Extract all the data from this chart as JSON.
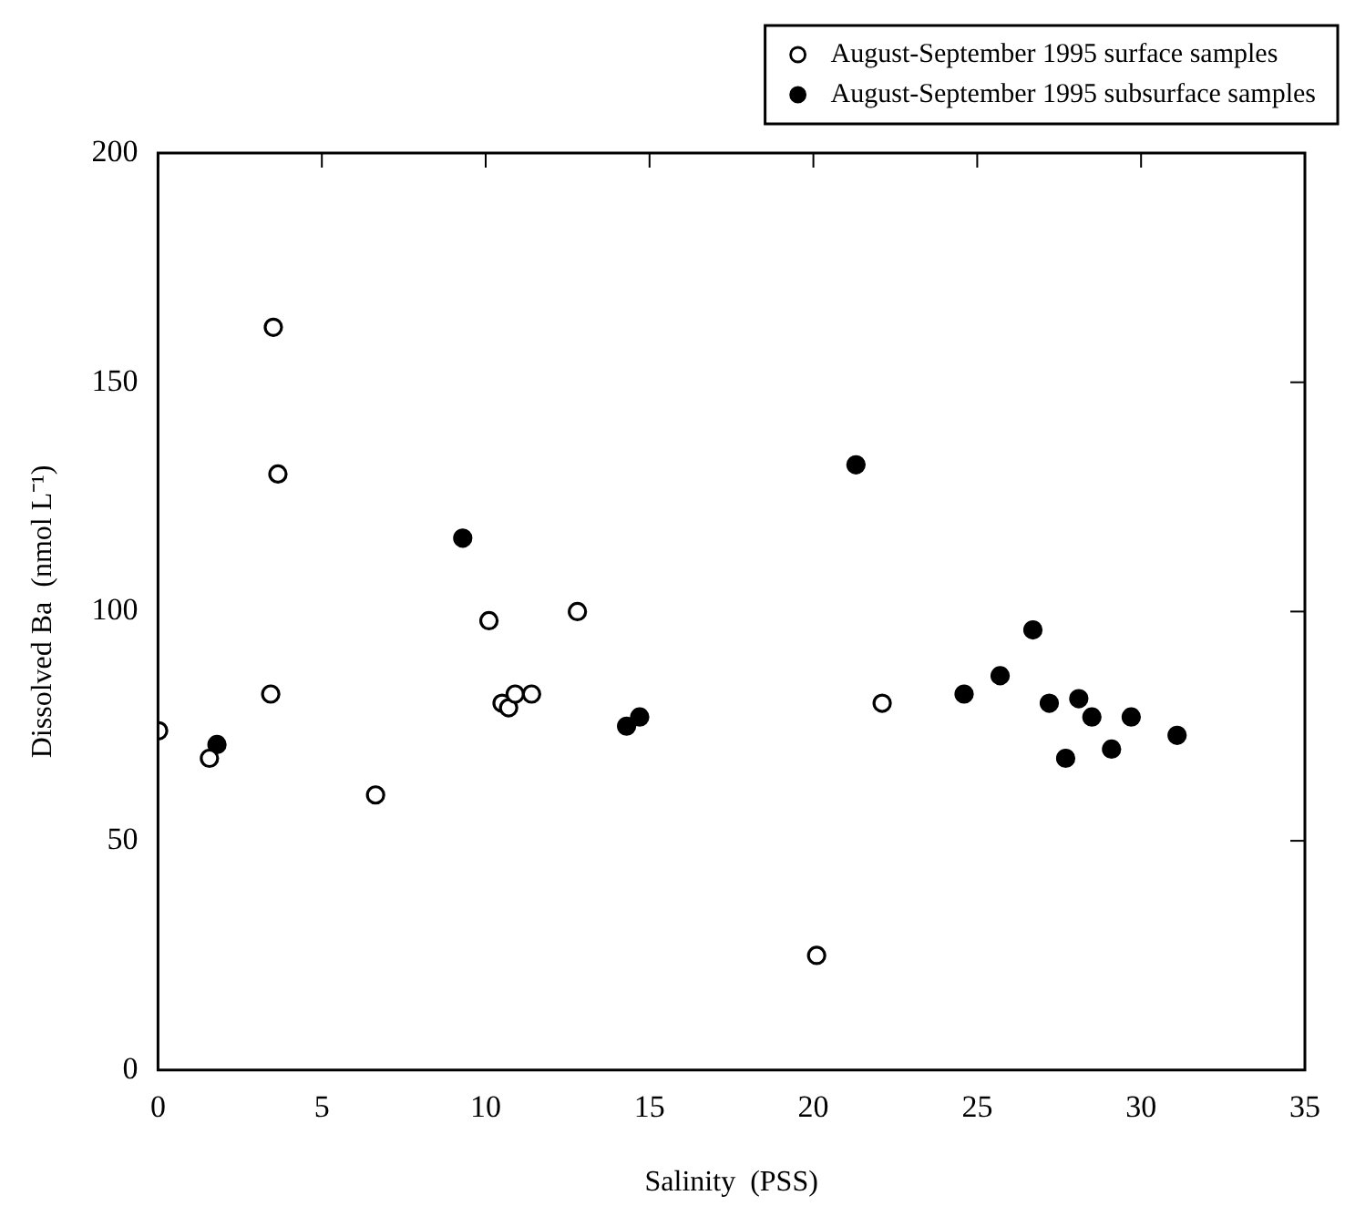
{
  "chart_data": {
    "type": "scatter",
    "xlabel": "Salinity  (PSS)",
    "ylabel": "Dissolved Ba  (nmol L⁻¹)",
    "xlim": [
      0,
      35
    ],
    "xticks": [
      0,
      5,
      10,
      15,
      20,
      25,
      30,
      35
    ],
    "ylim": [
      0,
      200
    ],
    "yticks": [
      0,
      50,
      100,
      150,
      200
    ],
    "grid": false,
    "legend": "top right",
    "marker": "circle",
    "series": [
      {
        "name": "August-September 1995 surface samples",
        "color": "#ffffff",
        "x": [
          0.02,
          1.57,
          3.44,
          3.52,
          3.66,
          6.64,
          10.1,
          10.5,
          10.7,
          10.9,
          11.4,
          12.8,
          20.1,
          22.1
        ],
        "values": [
          74,
          68,
          82,
          162,
          130,
          60,
          98,
          80,
          79,
          82,
          82,
          100,
          25,
          80
        ]
      },
      {
        "name": "August-September 1995 subsurface samples",
        "color": "#000000",
        "x": [
          1.8,
          9.3,
          14.3,
          14.7,
          21.3,
          24.6,
          25.7,
          26.7,
          27.2,
          27.7,
          28.1,
          28.5,
          29.1,
          29.7,
          31.1
        ],
        "values": [
          71,
          116,
          75,
          77,
          132,
          82,
          86,
          96,
          80,
          68,
          81,
          77,
          70,
          77,
          73
        ]
      }
    ]
  }
}
